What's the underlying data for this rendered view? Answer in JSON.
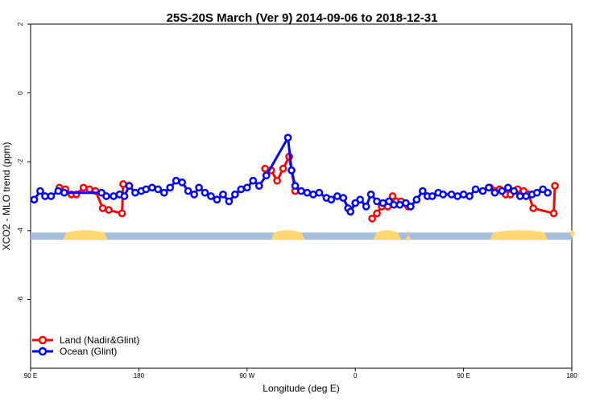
{
  "chart_data": {
    "type": "line",
    "title": "25S-20S March (Ver 9)   2014-09-06 to 2018-12-31",
    "xlabel": "Longitude (deg E)",
    "ylabel": "XCO2 - MLO trend (ppm)",
    "x_ticks": [
      {
        "value": 90,
        "label": "90 E"
      },
      {
        "value": 180,
        "label": "180"
      },
      {
        "value": 270,
        "label": "90 W"
      },
      {
        "value": 360,
        "label": "0"
      },
      {
        "value": 450,
        "label": "90 E"
      },
      {
        "value": 540,
        "label": "180"
      }
    ],
    "y_ticks": [
      {
        "value": 2,
        "label": "2"
      },
      {
        "value": 0,
        "label": "0"
      },
      {
        "value": -2,
        "label": "-2"
      },
      {
        "value": -4,
        "label": "-4"
      },
      {
        "value": -6,
        "label": "-6"
      }
    ],
    "xlim": [
      90,
      540
    ],
    "ylim": [
      -8,
      2
    ],
    "legend_position": "bottom-left",
    "land_mask": {
      "y": -4.15,
      "ocean_color": "#a6bddb",
      "land_color": "#fdd873",
      "land_segments": [
        [
          117,
          154
        ],
        [
          290,
          318
        ],
        [
          375,
          398
        ],
        [
          402,
          406
        ],
        [
          472,
          520
        ],
        [
          540,
          541
        ]
      ]
    },
    "series": [
      {
        "name": "Land (Nadir&Glint)",
        "color": "#ff0000",
        "segments": [
          [
            [
              114,
              -2.75
            ],
            [
              119,
              -2.8
            ],
            [
              124,
              -2.95
            ],
            [
              128,
              -2.95
            ],
            [
              134,
              -2.75
            ],
            [
              139,
              -2.8
            ],
            [
              144,
              -2.85
            ],
            [
              150,
              -3.35
            ],
            [
              155,
              -3.4
            ],
            [
              166,
              -3.5
            ],
            [
              167,
              -2.65
            ]
          ],
          [
            [
              285,
              -2.2
            ],
            [
              290,
              -2.25
            ],
            [
              295,
              -2.55
            ],
            [
              300,
              -2.2
            ],
            [
              305,
              -1.85
            ],
            [
              310,
              -2.85
            ]
          ],
          [
            [
              374,
              -3.65
            ],
            [
              378,
              -3.5
            ],
            [
              382,
              -3.3
            ],
            [
              387,
              -3.3
            ],
            [
              391,
              -3.0
            ],
            [
              394,
              -3.15
            ],
            [
              398,
              -3.15
            ],
            [
              404,
              -3.3
            ]
          ],
          [
            [
              472,
              -2.75
            ],
            [
              480,
              -2.8
            ],
            [
              485,
              -2.95
            ],
            [
              489,
              -2.95
            ],
            [
              495,
              -2.8
            ],
            [
              500,
              -2.85
            ],
            [
              504,
              -2.95
            ],
            [
              508,
              -3.35
            ],
            [
              525,
              -3.5
            ],
            [
              526,
              -2.7
            ]
          ]
        ]
      },
      {
        "name": "Ocean (Glint)",
        "color": "#0000ff",
        "segments": [
          [
            [
              93,
              -3.1
            ],
            [
              98,
              -2.85
            ],
            [
              102,
              -3.0
            ],
            [
              107,
              -3.0
            ],
            [
              113,
              -2.85
            ],
            [
              118,
              -2.9
            ],
            [
              149,
              -2.9
            ],
            [
              153,
              -3.0
            ],
            [
              159,
              -3.0
            ],
            [
              164,
              -2.95
            ],
            [
              168,
              -3.0
            ],
            [
              172,
              -2.7
            ],
            [
              177,
              -2.9
            ],
            [
              182,
              -2.85
            ],
            [
              186,
              -2.8
            ],
            [
              191,
              -2.75
            ],
            [
              196,
              -2.8
            ],
            [
              201,
              -2.9
            ],
            [
              206,
              -2.75
            ],
            [
              211,
              -2.55
            ],
            [
              216,
              -2.6
            ],
            [
              221,
              -2.85
            ],
            [
              226,
              -2.95
            ],
            [
              230,
              -2.75
            ],
            [
              235,
              -2.9
            ],
            [
              240,
              -3.0
            ],
            [
              245,
              -3.1
            ],
            [
              250,
              -2.95
            ],
            [
              255,
              -3.15
            ],
            [
              260,
              -2.95
            ],
            [
              265,
              -2.8
            ],
            [
              270,
              -2.75
            ],
            [
              275,
              -2.55
            ],
            [
              280,
              -2.7
            ],
            [
              286,
              -2.4
            ],
            [
              304,
              -1.3
            ],
            [
              307,
              -2.25
            ],
            [
              310,
              -2.7
            ],
            [
              315,
              -2.85
            ],
            [
              320,
              -2.9
            ],
            [
              325,
              -2.95
            ],
            [
              330,
              -2.9
            ],
            [
              336,
              -3.05
            ],
            [
              340,
              -3.1
            ],
            [
              345,
              -3.0
            ],
            [
              350,
              -3.05
            ],
            [
              354,
              -3.35
            ]
          ],
          [
            [
              356,
              -3.45
            ],
            [
              360,
              -3.2
            ],
            [
              364,
              -3.1
            ],
            [
              369,
              -3.3
            ],
            [
              373,
              -2.95
            ],
            [
              378,
              -3.15
            ],
            [
              383,
              -3.2
            ],
            [
              388,
              -3.15
            ],
            [
              392,
              -3.25
            ],
            [
              397,
              -3.25
            ],
            [
              402,
              -3.2
            ],
            [
              406,
              -3.3
            ],
            [
              411,
              -3.1
            ],
            [
              416,
              -2.85
            ],
            [
              420,
              -3.0
            ],
            [
              424,
              -3.0
            ],
            [
              429,
              -2.9
            ],
            [
              433,
              -2.95
            ],
            [
              440,
              -2.95
            ],
            [
              445,
              -3.0
            ],
            [
              450,
              -2.95
            ],
            [
              455,
              -3.0
            ],
            [
              460,
              -2.8
            ],
            [
              466,
              -2.85
            ],
            [
              471,
              -2.75
            ],
            [
              476,
              -2.9
            ],
            [
              482,
              -2.85
            ],
            [
              487,
              -2.75
            ],
            [
              492,
              -2.85
            ],
            [
              497,
              -3.0
            ],
            [
              502,
              -3.0
            ],
            [
              507,
              -2.95
            ],
            [
              511,
              -2.9
            ],
            [
              516,
              -2.8
            ],
            [
              520,
              -2.9
            ]
          ]
        ]
      }
    ]
  }
}
